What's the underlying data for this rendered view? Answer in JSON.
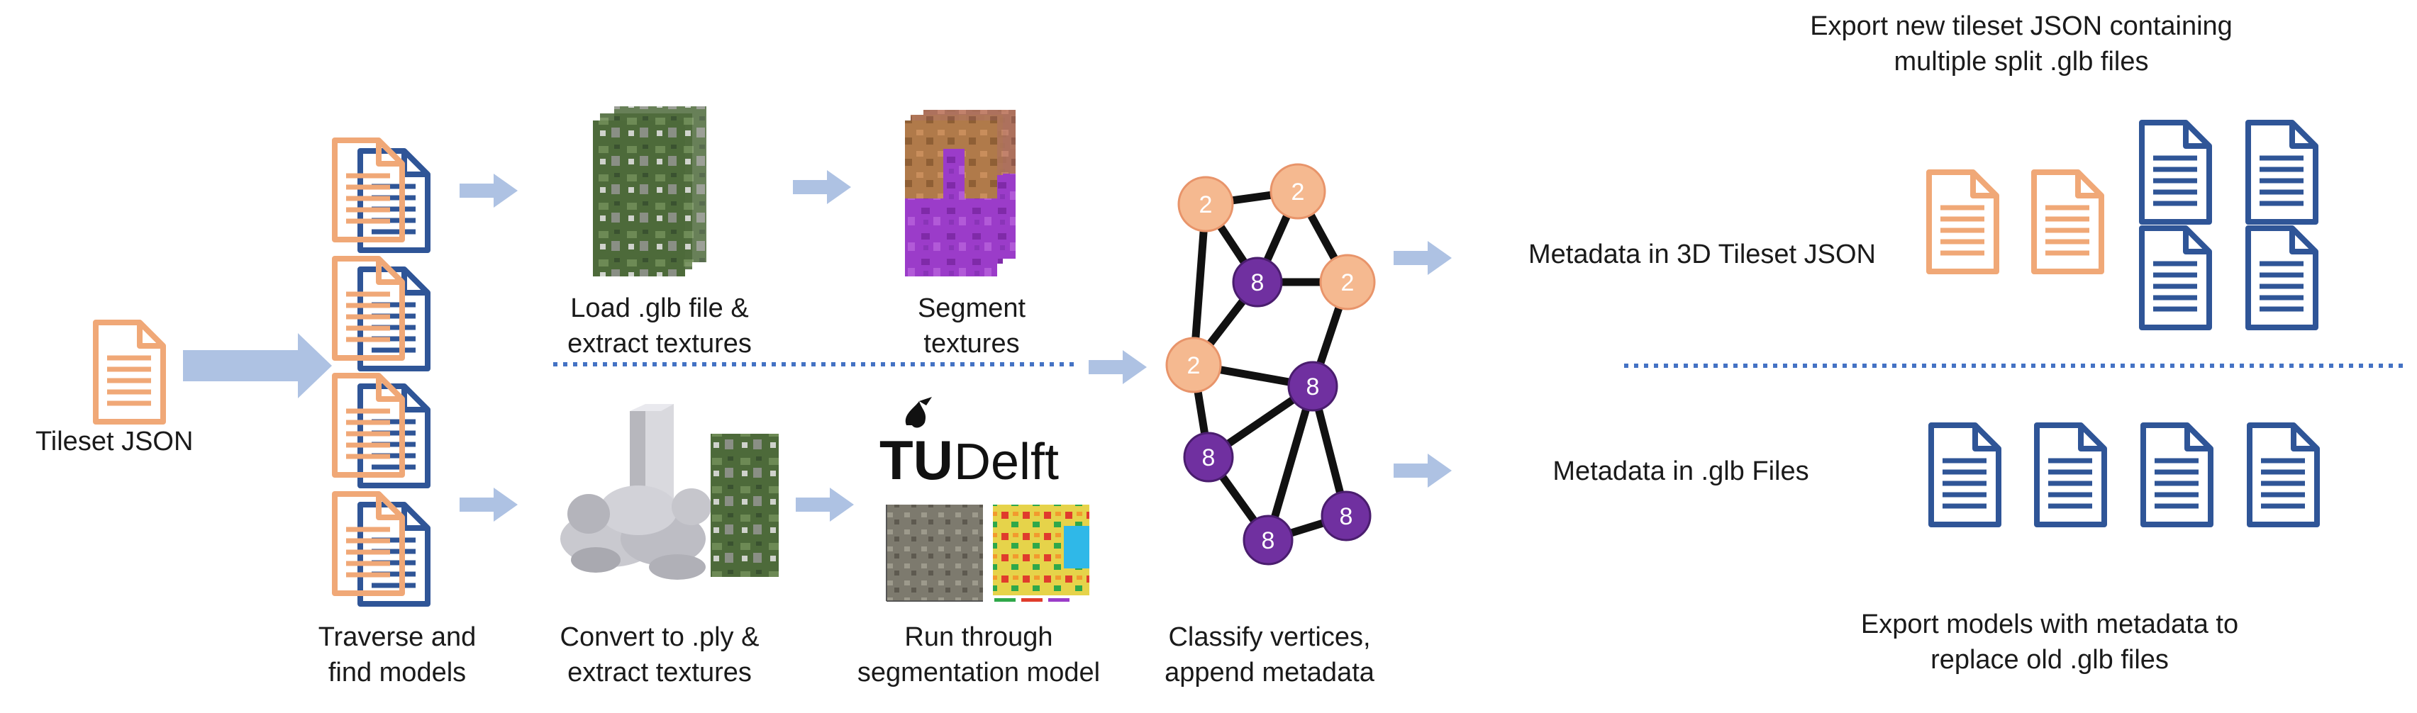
{
  "colors": {
    "orange": "#f0a877",
    "orange_fill": "#f5b990",
    "blue": "#2f5597",
    "purple": "#7030a0",
    "arrow": "#aec2e3",
    "dotted": "#4472c4",
    "edge": "#111111",
    "texture_purple": "#9b3cc9",
    "texture_wood": "#b07a4a",
    "aerial": "#4d6a3a",
    "tudelft_cyan": "#00a6d6"
  },
  "labels": {
    "tileset": "Tileset JSON",
    "traverse": [
      "Traverse and",
      "find models"
    ],
    "load": [
      "Load .glb file &",
      "extract textures"
    ],
    "segment": [
      "Segment",
      "textures"
    ],
    "convert": [
      "Convert to .ply &",
      "extract textures"
    ],
    "run": [
      "Run through",
      "segmentation model"
    ],
    "classify": [
      "Classify vertices,",
      "append metadata"
    ],
    "meta_tileset": "Metadata in 3D Tileset JSON",
    "meta_glb": "Metadata in .glb Files",
    "export_tileset": [
      "Export new tileset JSON containing",
      "multiple split .glb files"
    ],
    "export_models": [
      "Export models with metadata to",
      "replace old .glb files"
    ]
  },
  "logo": {
    "text_tu": "TU",
    "text_delft": "Delft"
  },
  "graph": {
    "nodes": [
      {
        "label": "2",
        "kind": "orange"
      },
      {
        "label": "2",
        "kind": "orange"
      },
      {
        "label": "8",
        "kind": "purple"
      },
      {
        "label": "2",
        "kind": "orange"
      },
      {
        "label": "2",
        "kind": "orange"
      },
      {
        "label": "8",
        "kind": "purple"
      },
      {
        "label": "8",
        "kind": "purple"
      },
      {
        "label": "8",
        "kind": "purple"
      },
      {
        "label": "8",
        "kind": "purple"
      }
    ]
  }
}
